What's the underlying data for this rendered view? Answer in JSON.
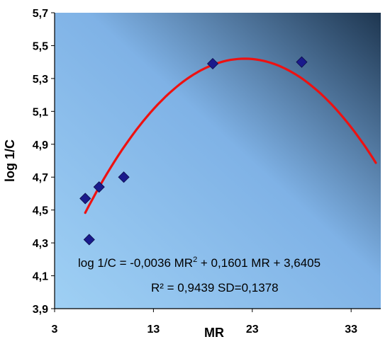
{
  "chart_data": {
    "type": "scatter",
    "xlabel": "MR",
    "ylabel": "log 1/C",
    "xlim": [
      3,
      36
    ],
    "ylim": [
      3.9,
      5.7
    ],
    "x_ticks": [
      "3",
      "13",
      "23",
      "33"
    ],
    "x_tick_values": [
      3,
      13,
      23,
      33
    ],
    "y_ticks": [
      "3,9",
      "4,1",
      "4,3",
      "4,5",
      "4,7",
      "4,9",
      "5,1",
      "5,3",
      "5,5",
      "5,7"
    ],
    "y_tick_values": [
      3.9,
      4.1,
      4.3,
      4.5,
      4.7,
      4.9,
      5.1,
      5.3,
      5.5,
      5.7
    ],
    "grid": false,
    "points": [
      {
        "x": 6.1,
        "y": 4.57
      },
      {
        "x": 6.5,
        "y": 4.32
      },
      {
        "x": 7.5,
        "y": 4.64
      },
      {
        "x": 10.0,
        "y": 4.7
      },
      {
        "x": 19.0,
        "y": 5.39
      },
      {
        "x": 28.0,
        "y": 5.4
      }
    ],
    "point_color": "#1a1a8c",
    "fit": {
      "coefficients": [
        -0.0036,
        0.1601,
        3.6405
      ],
      "x_range": [
        6.1,
        35.5
      ],
      "color": "#ee1111"
    },
    "annotations": {
      "equation_prefix": "log 1/C = -0,0036 MR",
      "equation_sup": "2",
      "equation_suffix": " + 0,1601 MR + 3,6405",
      "stats": "R² = 0,9439 SD=0,1378"
    },
    "background_gradient": [
      "#9fd0f4",
      "#7fb2e6",
      "#1e3650"
    ]
  }
}
